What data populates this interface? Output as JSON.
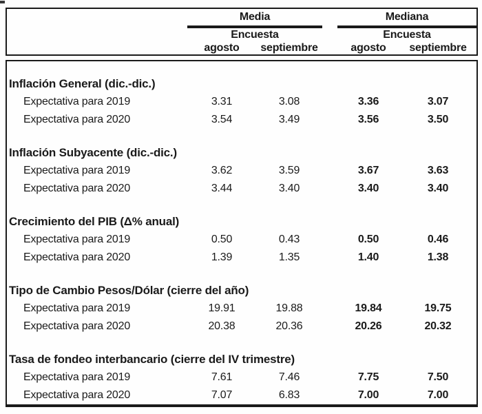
{
  "page": {
    "background": "#fefefe",
    "text_color": "#1a1a1a",
    "border_color": "#1a1a1a"
  },
  "header": {
    "groups": [
      {
        "label": "Media",
        "survey_label": "Encuesta",
        "columns": [
          "agosto",
          "septiembre"
        ]
      },
      {
        "label": "Mediana",
        "survey_label": "Encuesta",
        "columns": [
          "agosto",
          "septiembre"
        ]
      }
    ]
  },
  "sections": [
    {
      "title": "Inflación General (dic.-dic.)",
      "rows": [
        {
          "label": "Expectativa para 2019",
          "media": [
            "3.31",
            "3.08"
          ],
          "mediana": [
            "3.36",
            "3.07"
          ]
        },
        {
          "label": "Expectativa para 2020",
          "media": [
            "3.54",
            "3.49"
          ],
          "mediana": [
            "3.56",
            "3.50"
          ]
        }
      ]
    },
    {
      "title": "Inflación Subyacente (dic.-dic.)",
      "rows": [
        {
          "label": "Expectativa para 2019",
          "media": [
            "3.62",
            "3.59"
          ],
          "mediana": [
            "3.67",
            "3.63"
          ]
        },
        {
          "label": "Expectativa para 2020",
          "media": [
            "3.44",
            "3.40"
          ],
          "mediana": [
            "3.40",
            "3.40"
          ]
        }
      ]
    },
    {
      "title": "Crecimiento del PIB (Δ% anual)",
      "rows": [
        {
          "label": "Expectativa para 2019",
          "media": [
            "0.50",
            "0.43"
          ],
          "mediana": [
            "0.50",
            "0.46"
          ]
        },
        {
          "label": "Expectativa para 2020",
          "media": [
            "1.39",
            "1.35"
          ],
          "mediana": [
            "1.40",
            "1.38"
          ]
        }
      ]
    },
    {
      "title": "Tipo de Cambio Pesos/Dólar (cierre del año)",
      "rows": [
        {
          "label": "Expectativa para 2019",
          "media": [
            "19.91",
            "19.88"
          ],
          "mediana": [
            "19.84",
            "19.75"
          ]
        },
        {
          "label": "Expectativa para 2020",
          "media": [
            "20.38",
            "20.36"
          ],
          "mediana": [
            "20.26",
            "20.32"
          ]
        }
      ]
    },
    {
      "title": "Tasa de fondeo interbancario (cierre del IV trimestre)",
      "rows": [
        {
          "label": "Expectativa para 2019",
          "media": [
            "7.61",
            "7.46"
          ],
          "mediana": [
            "7.75",
            "7.50"
          ]
        },
        {
          "label": "Expectativa para 2020",
          "media": [
            "7.07",
            "6.83"
          ],
          "mediana": [
            "7.00",
            "7.00"
          ]
        }
      ]
    }
  ]
}
